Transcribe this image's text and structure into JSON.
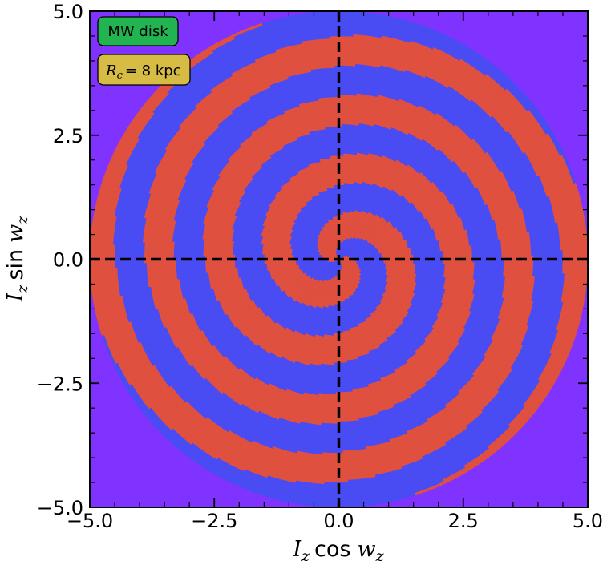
{
  "chart_data": {
    "type": "heatmap",
    "title": "",
    "xlabel": {
      "var": "I",
      "sub": "z",
      "fn": "cos",
      "arg": "w",
      "argsub": "z"
    },
    "ylabel": {
      "var": "I",
      "sub": "z",
      "fn": "sin",
      "arg": "w",
      "argsub": "z"
    },
    "xlim": [
      -5.0,
      5.0
    ],
    "ylim": [
      -5.0,
      5.0
    ],
    "xticks": [
      -5.0,
      -2.5,
      0.0,
      2.5,
      5.0
    ],
    "yticks": [
      -5.0,
      -2.5,
      0.0,
      2.5,
      5.0
    ],
    "xtick_labels": [
      "−5.0",
      "−2.5",
      "0.0",
      "2.5",
      "5.0"
    ],
    "ytick_labels": [
      "−5.0",
      "−2.5",
      "0.0",
      "2.5",
      "5.0"
    ],
    "reference_lines": [
      {
        "orientation": "vertical",
        "value": 0.0,
        "style": "dashed",
        "color": "#000000"
      },
      {
        "orientation": "horizontal",
        "value": 0.0,
        "style": "dashed",
        "color": "#000000"
      }
    ],
    "disk_radius": 5.0,
    "spiral": {
      "arms": 2,
      "pitch_rad_per_unit": 2.62,
      "phase_rad": 0.0
    },
    "colors": {
      "background": "#8033ff",
      "arm_red": "#e0503f",
      "arm_blue": "#4a4cf3"
    },
    "annotations": [
      {
        "text": "MW disk",
        "facecolor": "#22b450",
        "position": "top-left"
      },
      {
        "math_var": "R",
        "math_sub": "c",
        "value_text": "= 8 kpc",
        "facecolor": "#d6bb45",
        "position": "top-left"
      }
    ],
    "grid": false
  }
}
